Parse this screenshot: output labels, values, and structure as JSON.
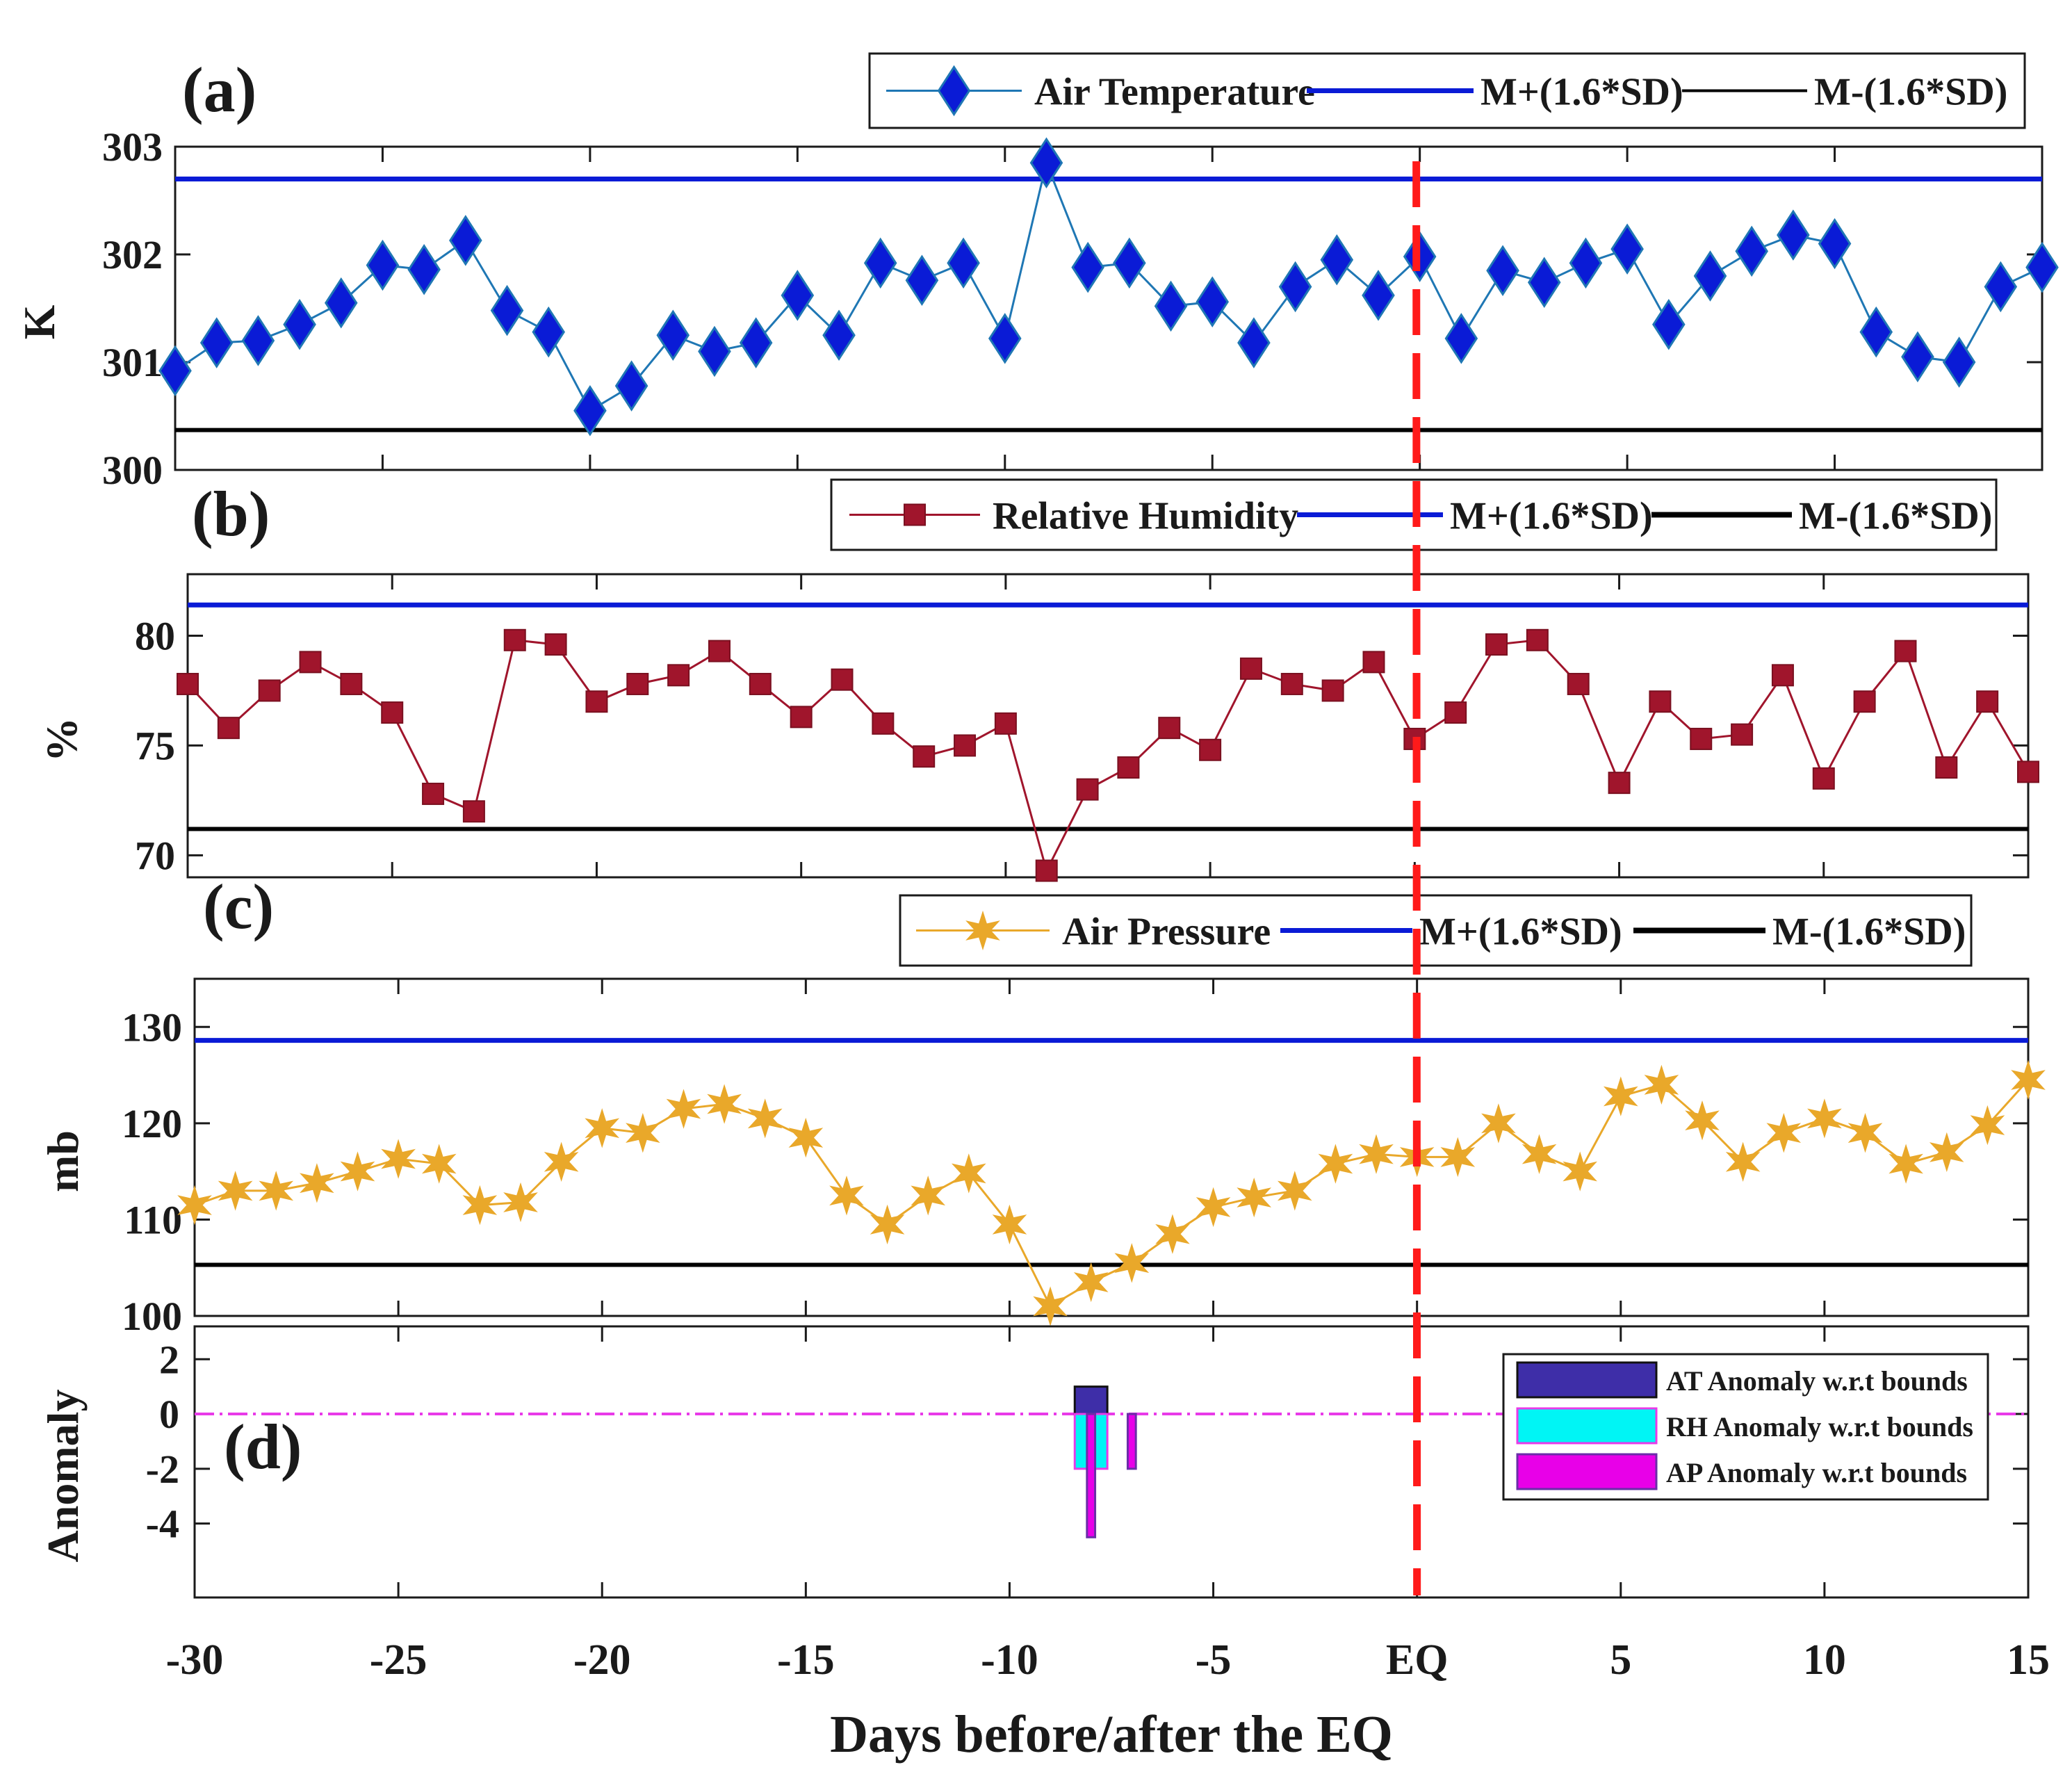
{
  "chart_data": [
    {
      "panel": "(a)",
      "type": "line",
      "ylabel": "K",
      "ylim": [
        300,
        303
      ],
      "yticks": [
        "300",
        "301",
        "302",
        "303"
      ],
      "x": [
        -30,
        -29,
        -28,
        -27,
        -26,
        -25,
        -24,
        -23,
        -22,
        -21,
        -20,
        -19,
        -18,
        -17,
        -16,
        -15,
        -14,
        -13,
        -12,
        -11,
        -10,
        -9,
        -8,
        -7,
        -6,
        -5,
        -4,
        -3,
        -2,
        -1,
        0,
        1,
        2,
        3,
        4,
        5,
        6,
        7,
        8,
        9,
        10,
        11,
        12,
        13,
        14,
        15
      ],
      "series": [
        {
          "name": "Air Temperature",
          "color": "#1f77b4",
          "marker": "diamond",
          "marker_fill": "#0a1bd6",
          "values": [
            300.92,
            301.18,
            301.2,
            301.35,
            301.55,
            301.9,
            301.86,
            302.13,
            301.48,
            301.28,
            300.55,
            300.78,
            301.25,
            301.1,
            301.18,
            301.62,
            301.25,
            301.92,
            301.76,
            301.92,
            301.22,
            302.85,
            301.88,
            301.92,
            301.52,
            301.56,
            301.18,
            301.7,
            301.95,
            301.62,
            301.98,
            301.22,
            301.85,
            301.74,
            301.92,
            302.05,
            301.35,
            301.8,
            302.03,
            302.18,
            302.1,
            301.28,
            301.05,
            301.0,
            301.7,
            301.88
          ]
        },
        {
          "name": "M+(1.6*SD)",
          "color": "#0a1bd6",
          "constant": 302.7
        },
        {
          "name": "M-(1.6*SD)",
          "color": "#000000",
          "constant": 300.37
        }
      ]
    },
    {
      "panel": "(b)",
      "type": "line",
      "ylabel": "%",
      "ylim": [
        69,
        82.8
      ],
      "yticks": [
        "70",
        "75",
        "80"
      ],
      "x": [
        -30,
        -29,
        -28,
        -27,
        -26,
        -25,
        -24,
        -23,
        -22,
        -21,
        -20,
        -19,
        -18,
        -17,
        -16,
        -15,
        -14,
        -13,
        -12,
        -11,
        -10,
        -9,
        -8,
        -7,
        -6,
        -5,
        -4,
        -3,
        -2,
        -1,
        0,
        1,
        2,
        3,
        4,
        5,
        6,
        7,
        8,
        9,
        10,
        11,
        12,
        13,
        14,
        15
      ],
      "series": [
        {
          "name": "Relative Humidity",
          "color": "#a0152c",
          "marker": "square",
          "values": [
            77.8,
            75.8,
            77.5,
            78.8,
            77.8,
            76.5,
            72.8,
            72.0,
            79.8,
            79.6,
            77.0,
            77.8,
            78.2,
            79.3,
            77.8,
            76.3,
            78.0,
            76.0,
            74.5,
            75.0,
            76.0,
            69.3,
            73.0,
            74.0,
            75.8,
            74.8,
            78.5,
            77.8,
            77.5,
            78.8,
            75.3,
            76.5,
            79.6,
            79.8,
            77.8,
            73.3,
            77.0,
            75.3,
            75.5,
            78.2,
            73.5,
            77.0,
            79.3,
            74.0,
            77.0,
            73.8
          ]
        },
        {
          "name": "M+(1.6*SD)",
          "color": "#0a1bd6",
          "constant": 81.4
        },
        {
          "name": "M-(1.6*SD)",
          "color": "#000000",
          "constant": 71.2
        }
      ]
    },
    {
      "panel": "(c)",
      "type": "line",
      "ylabel": "mb",
      "ylim": [
        100,
        135
      ],
      "yticks": [
        "100",
        "110",
        "120",
        "130"
      ],
      "x": [
        -30,
        -29,
        -28,
        -27,
        -26,
        -25,
        -24,
        -23,
        -22,
        -21,
        -20,
        -19,
        -18,
        -17,
        -16,
        -15,
        -14,
        -13,
        -12,
        -11,
        -10,
        -9,
        -8,
        -7,
        -6,
        -5,
        -4,
        -3,
        -2,
        -1,
        0,
        1,
        2,
        3,
        4,
        5,
        6,
        7,
        8,
        9,
        10,
        11,
        12,
        13,
        14,
        15
      ],
      "series": [
        {
          "name": "Air Pressure",
          "color": "#e9a82a",
          "marker": "star",
          "values": [
            111.5,
            113.0,
            113.0,
            113.8,
            115.0,
            116.3,
            115.8,
            111.5,
            111.8,
            116.0,
            119.5,
            119.0,
            121.5,
            122.0,
            120.5,
            118.5,
            112.5,
            109.5,
            112.5,
            114.8,
            109.5,
            101.0,
            103.5,
            105.5,
            108.5,
            111.3,
            112.3,
            113.0,
            115.8,
            116.8,
            116.5,
            116.5,
            120.0,
            116.8,
            115.0,
            122.8,
            124.0,
            120.3,
            116.0,
            119.0,
            120.5,
            119.0,
            115.8,
            117.0,
            119.8,
            124.5
          ]
        },
        {
          "name": "M+(1.6*SD)",
          "color": "#0a1bd6",
          "constant": 128.6
        },
        {
          "name": "M-(1.6*SD)",
          "color": "#000000",
          "constant": 105.3
        }
      ]
    },
    {
      "panel": "(d)",
      "type": "bar",
      "ylabel": "Anomaly",
      "ylim": [
        -6.7,
        3.2
      ],
      "yticks": [
        "-4",
        "-2",
        "0",
        "2"
      ],
      "zero_line_color": "#e83ae8",
      "series": [
        {
          "name": "AT Anomaly w.r.t bounds",
          "color": "#3e2ea8",
          "bars": [
            {
              "x": -8,
              "width": 0.8,
              "value": 1.0
            }
          ]
        },
        {
          "name": "RH Anomaly w.r.t bounds",
          "color": "#00f5f5",
          "edge": "#e83ae8",
          "bars": [
            {
              "x": -8,
              "width": 0.8,
              "value": -2.0
            }
          ]
        },
        {
          "name": "AP Anomaly w.r.t bounds",
          "color": "#e800e8",
          "edge": "#6a2ea8",
          "bars": [
            {
              "x": -8,
              "width": 0.2,
              "value": -4.5
            },
            {
              "x": -7,
              "width": 0.2,
              "value": -2.0
            }
          ]
        }
      ]
    }
  ],
  "xaxis": {
    "xlim": [
      -30,
      15
    ],
    "ticks": [
      -30,
      -25,
      -20,
      -15,
      -10,
      -5,
      0,
      5,
      10,
      15
    ],
    "tick_labels": [
      "-30",
      "-25",
      "-20",
      "-15",
      "-10",
      "-5",
      "EQ",
      "5",
      "10",
      "15"
    ],
    "xlabel": "Days before/after the EQ",
    "eq_marker_color": "#ff1a1a"
  },
  "legends": {
    "a": [
      "Air Temperature",
      "M+(1.6*SD)",
      "M-(1.6*SD)"
    ],
    "b": [
      "Relative Humidity",
      "M+(1.6*SD)",
      "M-(1.6*SD)"
    ],
    "c": [
      "Air Pressure",
      "M+(1.6*SD)",
      "M-(1.6*SD)"
    ],
    "d": [
      "AT Anomaly w.r.t bounds",
      "RH Anomaly w.r.t bounds",
      "AP Anomaly w.r.t bounds"
    ]
  }
}
